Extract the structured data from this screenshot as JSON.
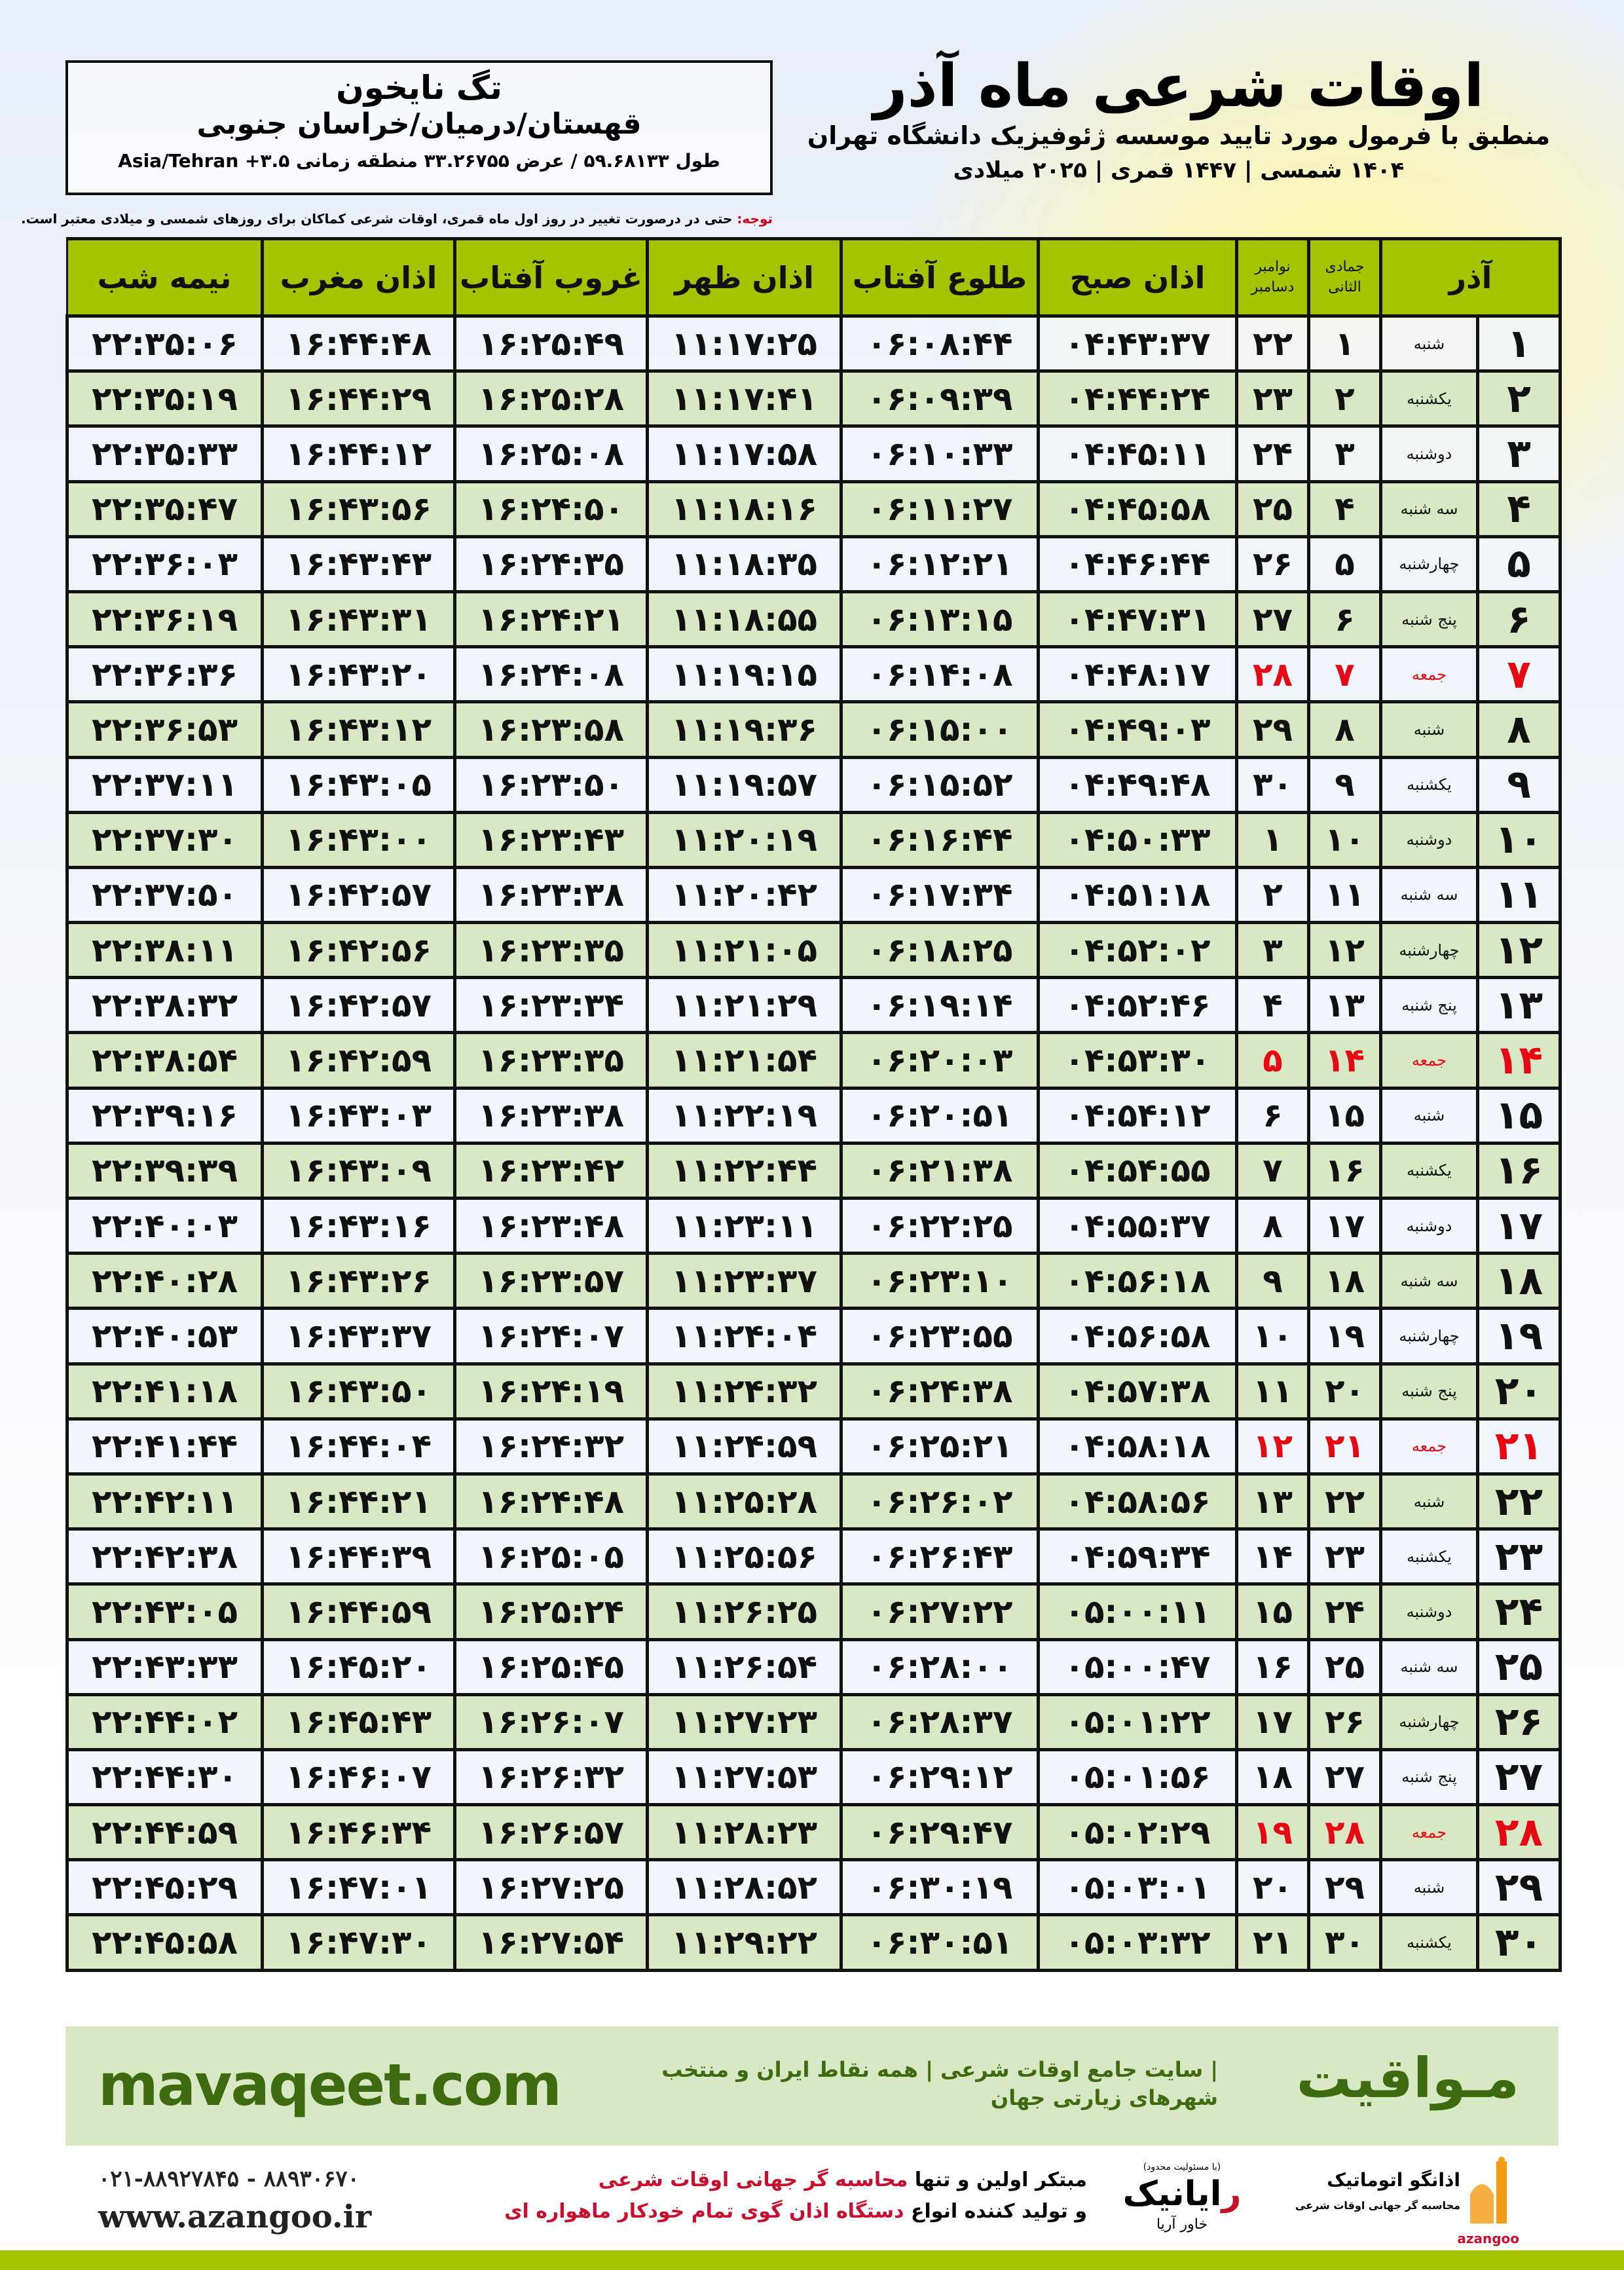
{
  "location": {
    "name": "تگ نایخون",
    "region": "قهستان/درمیان/خراسان جنوبی",
    "coords": "طول ۵۹.۶۸۱۳۳ / عرض ۳۳.۲۶۷۵۵ منطقه زمانی ۳.۵+ Asia/Tehran"
  },
  "title": {
    "main": "اوقات شرعی ماه آذر",
    "subtitle": "منطبق با فرمول مورد تایید موسسه ژئوفیزیک دانشگاه تهران",
    "dates": "۱۴۰۴ شمسی | ۱۴۴۷ قمری | ۲۰۲۵ میلادی"
  },
  "note": {
    "label": "توجه:",
    "text": " حتی در درصورت تغییر در روز اول ماه قمری، اوقات شرعی کماکان برای روزهای شمسی و میلادی معتبر است."
  },
  "table": {
    "headers": {
      "azar": "آذر",
      "hijri": "جمادی الثانی",
      "gregorian_top": "نوامبر",
      "gregorian_bottom": "دسامبر",
      "fajr": "اذان صبح",
      "sunrise": "طلوع آفتاب",
      "dhuhr": "اذان ظهر",
      "sunset": "غروب آفتاب",
      "maghrib": "اذان مغرب",
      "midnight": "نیمه شب"
    },
    "friday_color": "#e50914",
    "rows": [
      [
        "۱",
        "شنبه",
        "۱",
        "۲۲",
        "۰۴:۴۳:۳۷",
        "۰۶:۰۸:۴۴",
        "۱۱:۱۷:۲۵",
        "۱۶:۲۵:۴۹",
        "۱۶:۴۴:۴۸",
        "۲۲:۳۵:۰۶"
      ],
      [
        "۲",
        "یکشنبه",
        "۲",
        "۲۳",
        "۰۴:۴۴:۲۴",
        "۰۶:۰۹:۳۹",
        "۱۱:۱۷:۴۱",
        "۱۶:۲۵:۲۸",
        "۱۶:۴۴:۲۹",
        "۲۲:۳۵:۱۹"
      ],
      [
        "۳",
        "دوشنبه",
        "۳",
        "۲۴",
        "۰۴:۴۵:۱۱",
        "۰۶:۱۰:۳۳",
        "۱۱:۱۷:۵۸",
        "۱۶:۲۵:۰۸",
        "۱۶:۴۴:۱۲",
        "۲۲:۳۵:۳۳"
      ],
      [
        "۴",
        "سه شنبه",
        "۴",
        "۲۵",
        "۰۴:۴۵:۵۸",
        "۰۶:۱۱:۲۷",
        "۱۱:۱۸:۱۶",
        "۱۶:۲۴:۵۰",
        "۱۶:۴۳:۵۶",
        "۲۲:۳۵:۴۷"
      ],
      [
        "۵",
        "چهارشنبه",
        "۵",
        "۲۶",
        "۰۴:۴۶:۴۴",
        "۰۶:۱۲:۲۱",
        "۱۱:۱۸:۳۵",
        "۱۶:۲۴:۳۵",
        "۱۶:۴۳:۴۳",
        "۲۲:۳۶:۰۳"
      ],
      [
        "۶",
        "پنج شنبه",
        "۶",
        "۲۷",
        "۰۴:۴۷:۳۱",
        "۰۶:۱۳:۱۵",
        "۱۱:۱۸:۵۵",
        "۱۶:۲۴:۲۱",
        "۱۶:۴۳:۳۱",
        "۲۲:۳۶:۱۹"
      ],
      [
        "۷",
        "جمعه",
        "۷",
        "۲۸",
        "۰۴:۴۸:۱۷",
        "۰۶:۱۴:۰۸",
        "۱۱:۱۹:۱۵",
        "۱۶:۲۴:۰۸",
        "۱۶:۴۳:۲۰",
        "۲۲:۳۶:۳۶"
      ],
      [
        "۸",
        "شنبه",
        "۸",
        "۲۹",
        "۰۴:۴۹:۰۳",
        "۰۶:۱۵:۰۰",
        "۱۱:۱۹:۳۶",
        "۱۶:۲۳:۵۸",
        "۱۶:۴۳:۱۲",
        "۲۲:۳۶:۵۳"
      ],
      [
        "۹",
        "یکشنبه",
        "۹",
        "۳۰",
        "۰۴:۴۹:۴۸",
        "۰۶:۱۵:۵۲",
        "۱۱:۱۹:۵۷",
        "۱۶:۲۳:۵۰",
        "۱۶:۴۳:۰۵",
        "۲۲:۳۷:۱۱"
      ],
      [
        "۱۰",
        "دوشنبه",
        "۱۰",
        "۱",
        "۰۴:۵۰:۳۳",
        "۰۶:۱۶:۴۴",
        "۱۱:۲۰:۱۹",
        "۱۶:۲۳:۴۳",
        "۱۶:۴۳:۰۰",
        "۲۲:۳۷:۳۰"
      ],
      [
        "۱۱",
        "سه شنبه",
        "۱۱",
        "۲",
        "۰۴:۵۱:۱۸",
        "۰۶:۱۷:۳۴",
        "۱۱:۲۰:۴۲",
        "۱۶:۲۳:۳۸",
        "۱۶:۴۲:۵۷",
        "۲۲:۳۷:۵۰"
      ],
      [
        "۱۲",
        "چهارشنبه",
        "۱۲",
        "۳",
        "۰۴:۵۲:۰۲",
        "۰۶:۱۸:۲۵",
        "۱۱:۲۱:۰۵",
        "۱۶:۲۳:۳۵",
        "۱۶:۴۲:۵۶",
        "۲۲:۳۸:۱۱"
      ],
      [
        "۱۳",
        "پنج شنبه",
        "۱۳",
        "۴",
        "۰۴:۵۲:۴۶",
        "۰۶:۱۹:۱۴",
        "۱۱:۲۱:۲۹",
        "۱۶:۲۳:۳۴",
        "۱۶:۴۲:۵۷",
        "۲۲:۳۸:۳۲"
      ],
      [
        "۱۴",
        "جمعه",
        "۱۴",
        "۵",
        "۰۴:۵۳:۳۰",
        "۰۶:۲۰:۰۳",
        "۱۱:۲۱:۵۴",
        "۱۶:۲۳:۳۵",
        "۱۶:۴۲:۵۹",
        "۲۲:۳۸:۵۴"
      ],
      [
        "۱۵",
        "شنبه",
        "۱۵",
        "۶",
        "۰۴:۵۴:۱۲",
        "۰۶:۲۰:۵۱",
        "۱۱:۲۲:۱۹",
        "۱۶:۲۳:۳۸",
        "۱۶:۴۳:۰۳",
        "۲۲:۳۹:۱۶"
      ],
      [
        "۱۶",
        "یکشنبه",
        "۱۶",
        "۷",
        "۰۴:۵۴:۵۵",
        "۰۶:۲۱:۳۸",
        "۱۱:۲۲:۴۴",
        "۱۶:۲۳:۴۲",
        "۱۶:۴۳:۰۹",
        "۲۲:۳۹:۳۹"
      ],
      [
        "۱۷",
        "دوشنبه",
        "۱۷",
        "۸",
        "۰۴:۵۵:۳۷",
        "۰۶:۲۲:۲۵",
        "۱۱:۲۳:۱۱",
        "۱۶:۲۳:۴۸",
        "۱۶:۴۳:۱۶",
        "۲۲:۴۰:۰۳"
      ],
      [
        "۱۸",
        "سه شنبه",
        "۱۸",
        "۹",
        "۰۴:۵۶:۱۸",
        "۰۶:۲۳:۱۰",
        "۱۱:۲۳:۳۷",
        "۱۶:۲۳:۵۷",
        "۱۶:۴۳:۲۶",
        "۲۲:۴۰:۲۸"
      ],
      [
        "۱۹",
        "چهارشنبه",
        "۱۹",
        "۱۰",
        "۰۴:۵۶:۵۸",
        "۰۶:۲۳:۵۵",
        "۱۱:۲۴:۰۴",
        "۱۶:۲۴:۰۷",
        "۱۶:۴۳:۳۷",
        "۲۲:۴۰:۵۳"
      ],
      [
        "۲۰",
        "پنج شنبه",
        "۲۰",
        "۱۱",
        "۰۴:۵۷:۳۸",
        "۰۶:۲۴:۳۸",
        "۱۱:۲۴:۳۲",
        "۱۶:۲۴:۱۹",
        "۱۶:۴۳:۵۰",
        "۲۲:۴۱:۱۸"
      ],
      [
        "۲۱",
        "جمعه",
        "۲۱",
        "۱۲",
        "۰۴:۵۸:۱۸",
        "۰۶:۲۵:۲۱",
        "۱۱:۲۴:۵۹",
        "۱۶:۲۴:۳۲",
        "۱۶:۴۴:۰۴",
        "۲۲:۴۱:۴۴"
      ],
      [
        "۲۲",
        "شنبه",
        "۲۲",
        "۱۳",
        "۰۴:۵۸:۵۶",
        "۰۶:۲۶:۰۲",
        "۱۱:۲۵:۲۸",
        "۱۶:۲۴:۴۸",
        "۱۶:۴۴:۲۱",
        "۲۲:۴۲:۱۱"
      ],
      [
        "۲۳",
        "یکشنبه",
        "۲۳",
        "۱۴",
        "۰۴:۵۹:۳۴",
        "۰۶:۲۶:۴۳",
        "۱۱:۲۵:۵۶",
        "۱۶:۲۵:۰۵",
        "۱۶:۴۴:۳۹",
        "۲۲:۴۲:۳۸"
      ],
      [
        "۲۴",
        "دوشنبه",
        "۲۴",
        "۱۵",
        "۰۵:۰۰:۱۱",
        "۰۶:۲۷:۲۲",
        "۱۱:۲۶:۲۵",
        "۱۶:۲۵:۲۴",
        "۱۶:۴۴:۵۹",
        "۲۲:۴۳:۰۵"
      ],
      [
        "۲۵",
        "سه شنبه",
        "۲۵",
        "۱۶",
        "۰۵:۰۰:۴۷",
        "۰۶:۲۸:۰۰",
        "۱۱:۲۶:۵۴",
        "۱۶:۲۵:۴۵",
        "۱۶:۴۵:۲۰",
        "۲۲:۴۳:۳۳"
      ],
      [
        "۲۶",
        "چهارشنبه",
        "۲۶",
        "۱۷",
        "۰۵:۰۱:۲۲",
        "۰۶:۲۸:۳۷",
        "۱۱:۲۷:۲۳",
        "۱۶:۲۶:۰۷",
        "۱۶:۴۵:۴۳",
        "۲۲:۴۴:۰۲"
      ],
      [
        "۲۷",
        "پنج شنبه",
        "۲۷",
        "۱۸",
        "۰۵:۰۱:۵۶",
        "۰۶:۲۹:۱۲",
        "۱۱:۲۷:۵۳",
        "۱۶:۲۶:۳۲",
        "۱۶:۴۶:۰۷",
        "۲۲:۴۴:۳۰"
      ],
      [
        "۲۸",
        "جمعه",
        "۲۸",
        "۱۹",
        "۰۵:۰۲:۲۹",
        "۰۶:۲۹:۴۷",
        "۱۱:۲۸:۲۳",
        "۱۶:۲۶:۵۷",
        "۱۶:۴۶:۳۴",
        "۲۲:۴۴:۵۹"
      ],
      [
        "۲۹",
        "شنبه",
        "۲۹",
        "۲۰",
        "۰۵:۰۳:۰۱",
        "۰۶:۳۰:۱۹",
        "۱۱:۲۸:۵۲",
        "۱۶:۲۷:۲۵",
        "۱۶:۴۷:۰۱",
        "۲۲:۴۵:۲۹"
      ],
      [
        "۳۰",
        "یکشنبه",
        "۳۰",
        "۲۱",
        "۰۵:۰۳:۳۲",
        "۰۶:۳۰:۵۱",
        "۱۱:۲۹:۲۲",
        "۱۶:۲۷:۵۴",
        "۱۶:۴۷:۳۰",
        "۲۲:۴۵:۵۸"
      ]
    ]
  },
  "footer": {
    "site_url": "mavaqeet.com",
    "site_logo": "مـواقیت",
    "site_desc": "| سایت جامع اوقات شرعی | همه نقاط ایران و منتخب شهرهای زیارتی جهان",
    "phones": "۰۲۱-۸۸۹۲۷۸۴۵ - ۸۸۹۳۰۶۷۰",
    "website": "www.azangoo.ir",
    "slogan_1a": "مبتکر اولین و تنها ",
    "slogan_1b": "محاسبه گر جهانی اوقات شرعی",
    "slogan_2a": "و تولید کننده انواع ",
    "slogan_2b": "دستگاه اذان گوی تمام خودکار ماهواره ای",
    "rayanik_top": "(با مسئولیت محدود)",
    "rayanik_r": "ر",
    "rayanik_rest": "ایانیک",
    "rayanik_sub": "خاور آریا",
    "azangoo_name": "اذانگو اتوماتیک",
    "azangoo_tag": "محاسبه گر جهانی اوقات شرعی",
    "azangoo_eng": "azangoo",
    "brand_green": "#a4c400",
    "text_green": "#3e6a10",
    "accent_red": "#c8102e"
  }
}
